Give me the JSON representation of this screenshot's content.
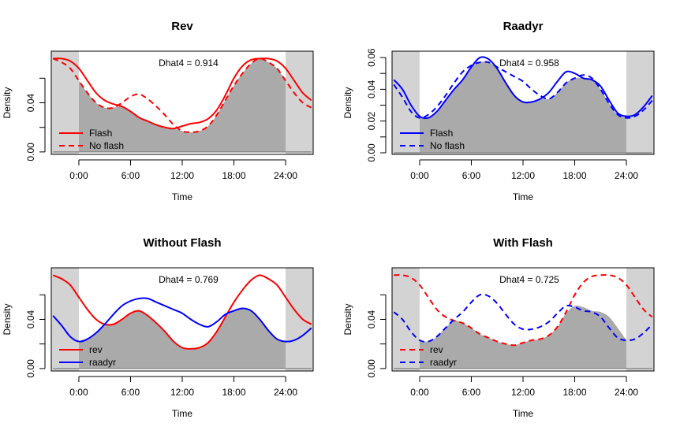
{
  "chart_data": [
    {
      "type": "area",
      "title": "Rev",
      "xlabel": "Time",
      "ylabel": "Density",
      "annotation": "Dhat4 = 0.914",
      "xlim": [
        -3.2,
        27.2
      ],
      "ylim": [
        -0.002,
        0.082
      ],
      "x_ticks": [
        0,
        6,
        12,
        18,
        24
      ],
      "x_tick_labels": [
        "0:00",
        "6:00",
        "12:00",
        "18:00",
        "24:00"
      ],
      "y_ticks": [
        0.0,
        0.02,
        0.04,
        0.06
      ],
      "y_tick_labels": [
        "0.00",
        "",
        "0.04",
        ""
      ],
      "legend": {
        "placement": "bottom-left",
        "entries": [
          "Flash",
          "No flash"
        ]
      },
      "series": [
        {
          "name": "Flash",
          "color": "#ff0000",
          "dash": "solid",
          "x": [
            -3,
            -2,
            -1,
            0,
            1,
            2,
            3,
            4,
            5,
            6,
            7,
            8,
            9,
            10,
            11,
            12,
            13,
            14,
            15,
            16,
            17,
            18,
            19,
            20,
            21,
            22,
            23,
            24,
            25,
            26,
            27
          ],
          "y": [
            0.076,
            0.076,
            0.074,
            0.068,
            0.058,
            0.048,
            0.042,
            0.039,
            0.037,
            0.033,
            0.028,
            0.025,
            0.022,
            0.02,
            0.019,
            0.021,
            0.023,
            0.024,
            0.027,
            0.034,
            0.046,
            0.06,
            0.07,
            0.075,
            0.076,
            0.076,
            0.074,
            0.068,
            0.058,
            0.048,
            0.042
          ]
        },
        {
          "name": "No flash",
          "color": "#ff0000",
          "dash": "dashed",
          "x": [
            -3,
            -2,
            -1,
            0,
            1,
            2,
            3,
            4,
            5,
            6,
            7,
            8,
            9,
            10,
            11,
            12,
            13,
            14,
            15,
            16,
            17,
            18,
            19,
            20,
            21,
            22,
            23,
            24,
            25,
            26,
            27
          ],
          "y": [
            0.076,
            0.073,
            0.068,
            0.058,
            0.048,
            0.04,
            0.036,
            0.036,
            0.04,
            0.045,
            0.047,
            0.043,
            0.037,
            0.03,
            0.022,
            0.017,
            0.016,
            0.017,
            0.021,
            0.03,
            0.042,
            0.054,
            0.064,
            0.072,
            0.076,
            0.073,
            0.068,
            0.058,
            0.048,
            0.04,
            0.036
          ]
        }
      ],
      "overlap_area": {
        "color": "#aaaaaa",
        "x": [
          0,
          1,
          2,
          3,
          4,
          5,
          6,
          7,
          8,
          9,
          10,
          11,
          12,
          13,
          14,
          15,
          16,
          17,
          18,
          19,
          20,
          21,
          22,
          23,
          24
        ],
        "y": [
          0.058,
          0.048,
          0.04,
          0.036,
          0.036,
          0.037,
          0.033,
          0.028,
          0.025,
          0.022,
          0.02,
          0.019,
          0.017,
          0.016,
          0.017,
          0.021,
          0.03,
          0.042,
          0.054,
          0.064,
          0.072,
          0.076,
          0.073,
          0.068,
          0.058
        ]
      },
      "shaded_x_ranges": [
        [
          -3.2,
          0
        ],
        [
          24,
          27.2
        ]
      ]
    },
    {
      "type": "area",
      "title": "Raadyr",
      "xlabel": "Time",
      "ylabel": "Density",
      "annotation": "Dhat4 = 0.958",
      "xlim": [
        -3.2,
        27.2
      ],
      "ylim": [
        -0.001,
        0.064
      ],
      "x_ticks": [
        0,
        6,
        12,
        18,
        24
      ],
      "x_tick_labels": [
        "0:00",
        "6:00",
        "12:00",
        "18:00",
        "24:00"
      ],
      "y_ticks": [
        0.0,
        0.01,
        0.02,
        0.03,
        0.04,
        0.05,
        0.06
      ],
      "y_tick_labels": [
        "0.00",
        "",
        "0.02",
        "",
        "0.04",
        "",
        "0.06"
      ],
      "legend": {
        "placement": "bottom-left",
        "entries": [
          "Flash",
          "No flash"
        ]
      },
      "series": [
        {
          "name": "Flash",
          "color": "#0000ff",
          "dash": "solid",
          "x": [
            -3,
            -2,
            -1,
            0,
            1,
            2,
            3,
            4,
            5,
            6,
            7,
            8,
            9,
            10,
            11,
            12,
            13,
            14,
            15,
            16,
            17,
            18,
            19,
            20,
            21,
            22,
            23,
            24,
            25,
            26,
            27
          ],
          "y": [
            0.046,
            0.04,
            0.03,
            0.023,
            0.022,
            0.026,
            0.033,
            0.04,
            0.046,
            0.054,
            0.06,
            0.059,
            0.053,
            0.044,
            0.036,
            0.032,
            0.032,
            0.034,
            0.038,
            0.045,
            0.051,
            0.05,
            0.047,
            0.046,
            0.042,
            0.033,
            0.025,
            0.023,
            0.024,
            0.029,
            0.036
          ]
        },
        {
          "name": "No flash",
          "color": "#0000ff",
          "dash": "dashed",
          "x": [
            -3,
            -2,
            -1,
            0,
            1,
            2,
            3,
            4,
            5,
            6,
            7,
            8,
            9,
            10,
            11,
            12,
            13,
            14,
            15,
            16,
            17,
            18,
            19,
            20,
            21,
            22,
            23,
            24,
            25,
            26,
            27
          ],
          "y": [
            0.043,
            0.035,
            0.026,
            0.022,
            0.024,
            0.029,
            0.036,
            0.044,
            0.051,
            0.055,
            0.057,
            0.057,
            0.054,
            0.051,
            0.048,
            0.045,
            0.04,
            0.036,
            0.034,
            0.038,
            0.044,
            0.047,
            0.049,
            0.047,
            0.04,
            0.031,
            0.024,
            0.022,
            0.023,
            0.027,
            0.033
          ]
        }
      ],
      "overlap_area": {
        "color": "#aaaaaa",
        "x": [
          0,
          1,
          2,
          3,
          4,
          5,
          6,
          7,
          8,
          9,
          10,
          11,
          12,
          13,
          14,
          15,
          16,
          17,
          18,
          19,
          20,
          21,
          22,
          23,
          24
        ],
        "y": [
          0.022,
          0.022,
          0.026,
          0.033,
          0.04,
          0.046,
          0.054,
          0.057,
          0.057,
          0.053,
          0.044,
          0.036,
          0.032,
          0.032,
          0.034,
          0.034,
          0.038,
          0.044,
          0.047,
          0.047,
          0.046,
          0.04,
          0.031,
          0.024,
          0.022
        ]
      },
      "shaded_x_ranges": [
        [
          -3.2,
          0
        ],
        [
          24,
          27.2
        ]
      ]
    },
    {
      "type": "area",
      "title": "Without Flash",
      "xlabel": "Time",
      "ylabel": "Density",
      "annotation": "Dhat4 = 0.769",
      "xlim": [
        -3.2,
        27.2
      ],
      "ylim": [
        -0.002,
        0.082
      ],
      "x_ticks": [
        0,
        6,
        12,
        18,
        24
      ],
      "x_tick_labels": [
        "0:00",
        "6:00",
        "12:00",
        "18:00",
        "24:00"
      ],
      "y_ticks": [
        0.0,
        0.02,
        0.04,
        0.06
      ],
      "y_tick_labels": [
        "0.00",
        "",
        "0.04",
        ""
      ],
      "legend": {
        "placement": "bottom-left",
        "entries": [
          "rev",
          "raadyr"
        ]
      },
      "series": [
        {
          "name": "rev",
          "color": "#ff0000",
          "dash": "solid",
          "x": [
            -3,
            -2,
            -1,
            0,
            1,
            2,
            3,
            4,
            5,
            6,
            7,
            8,
            9,
            10,
            11,
            12,
            13,
            14,
            15,
            16,
            17,
            18,
            19,
            20,
            21,
            22,
            23,
            24,
            25,
            26,
            27
          ],
          "y": [
            0.076,
            0.073,
            0.068,
            0.058,
            0.048,
            0.04,
            0.036,
            0.036,
            0.04,
            0.045,
            0.047,
            0.043,
            0.037,
            0.03,
            0.022,
            0.017,
            0.016,
            0.017,
            0.021,
            0.03,
            0.042,
            0.054,
            0.064,
            0.072,
            0.076,
            0.073,
            0.068,
            0.058,
            0.048,
            0.04,
            0.036
          ]
        },
        {
          "name": "raadyr",
          "color": "#0000ff",
          "dash": "solid",
          "x": [
            -3,
            -2,
            -1,
            0,
            1,
            2,
            3,
            4,
            5,
            6,
            7,
            8,
            9,
            10,
            11,
            12,
            13,
            14,
            15,
            16,
            17,
            18,
            19,
            20,
            21,
            22,
            23,
            24,
            25,
            26,
            27
          ],
          "y": [
            0.043,
            0.035,
            0.026,
            0.022,
            0.024,
            0.029,
            0.036,
            0.044,
            0.051,
            0.055,
            0.057,
            0.057,
            0.054,
            0.051,
            0.048,
            0.045,
            0.04,
            0.036,
            0.034,
            0.038,
            0.044,
            0.047,
            0.049,
            0.047,
            0.04,
            0.031,
            0.024,
            0.022,
            0.023,
            0.027,
            0.033
          ]
        }
      ],
      "overlap_area": {
        "color": "#aaaaaa",
        "x": [
          0,
          1,
          2,
          3,
          4,
          5,
          6,
          7,
          8,
          9,
          10,
          11,
          12,
          13,
          14,
          15,
          16,
          17,
          18,
          19,
          20,
          21,
          22,
          23,
          24
        ],
        "y": [
          0.022,
          0.024,
          0.029,
          0.036,
          0.036,
          0.04,
          0.045,
          0.047,
          0.043,
          0.037,
          0.03,
          0.022,
          0.017,
          0.016,
          0.017,
          0.021,
          0.03,
          0.042,
          0.047,
          0.049,
          0.047,
          0.04,
          0.031,
          0.024,
          0.022
        ]
      },
      "shaded_x_ranges": [
        [
          -3.2,
          0
        ],
        [
          24,
          27.2
        ]
      ]
    },
    {
      "type": "area",
      "title": "With Flash",
      "xlabel": "Time",
      "ylabel": "Density",
      "annotation": "Dhat4 = 0.725",
      "xlim": [
        -3.2,
        27.2
      ],
      "ylim": [
        -0.002,
        0.082
      ],
      "x_ticks": [
        0,
        6,
        12,
        18,
        24
      ],
      "x_tick_labels": [
        "0:00",
        "6:00",
        "12:00",
        "18:00",
        "24:00"
      ],
      "y_ticks": [
        0.0,
        0.02,
        0.04,
        0.06
      ],
      "y_tick_labels": [
        "0.00",
        "",
        "0.04",
        ""
      ],
      "legend": {
        "placement": "bottom-left",
        "entries": [
          "rev",
          "raadyr"
        ]
      },
      "series": [
        {
          "name": "rev",
          "color": "#ff0000",
          "dash": "dashed",
          "x": [
            -3,
            -2,
            -1,
            0,
            1,
            2,
            3,
            4,
            5,
            6,
            7,
            8,
            9,
            10,
            11,
            12,
            13,
            14,
            15,
            16,
            17,
            18,
            19,
            20,
            21,
            22,
            23,
            24,
            25,
            26,
            27
          ],
          "y": [
            0.076,
            0.076,
            0.074,
            0.068,
            0.058,
            0.048,
            0.042,
            0.039,
            0.037,
            0.033,
            0.028,
            0.025,
            0.022,
            0.02,
            0.019,
            0.021,
            0.023,
            0.024,
            0.027,
            0.034,
            0.046,
            0.06,
            0.07,
            0.075,
            0.076,
            0.076,
            0.074,
            0.068,
            0.058,
            0.048,
            0.042
          ]
        },
        {
          "name": "raadyr",
          "color": "#0000ff",
          "dash": "dashed",
          "x": [
            -3,
            -2,
            -1,
            0,
            1,
            2,
            3,
            4,
            5,
            6,
            7,
            8,
            9,
            10,
            11,
            12,
            13,
            14,
            15,
            16,
            17,
            18,
            19,
            20,
            21,
            22,
            23,
            24,
            25,
            26,
            27
          ],
          "y": [
            0.046,
            0.04,
            0.03,
            0.023,
            0.022,
            0.026,
            0.033,
            0.04,
            0.046,
            0.054,
            0.06,
            0.059,
            0.053,
            0.044,
            0.036,
            0.032,
            0.032,
            0.034,
            0.038,
            0.045,
            0.051,
            0.05,
            0.047,
            0.046,
            0.042,
            0.033,
            0.025,
            0.023,
            0.024,
            0.029,
            0.036
          ]
        }
      ],
      "overlap_area": {
        "color": "#aaaaaa",
        "x": [
          0,
          1,
          2,
          3,
          4,
          5,
          6,
          7,
          8,
          9,
          10,
          11,
          12,
          13,
          14,
          15,
          16,
          17,
          18,
          19,
          20,
          21,
          22,
          23,
          24
        ],
        "y": [
          0.023,
          0.022,
          0.026,
          0.033,
          0.039,
          0.037,
          0.033,
          0.028,
          0.025,
          0.022,
          0.02,
          0.019,
          0.021,
          0.023,
          0.024,
          0.027,
          0.034,
          0.045,
          0.051,
          0.05,
          0.047,
          0.046,
          0.042,
          0.033,
          0.023
        ]
      },
      "shaded_x_ranges": [
        [
          -3.2,
          0
        ],
        [
          24,
          27.2
        ]
      ]
    }
  ]
}
